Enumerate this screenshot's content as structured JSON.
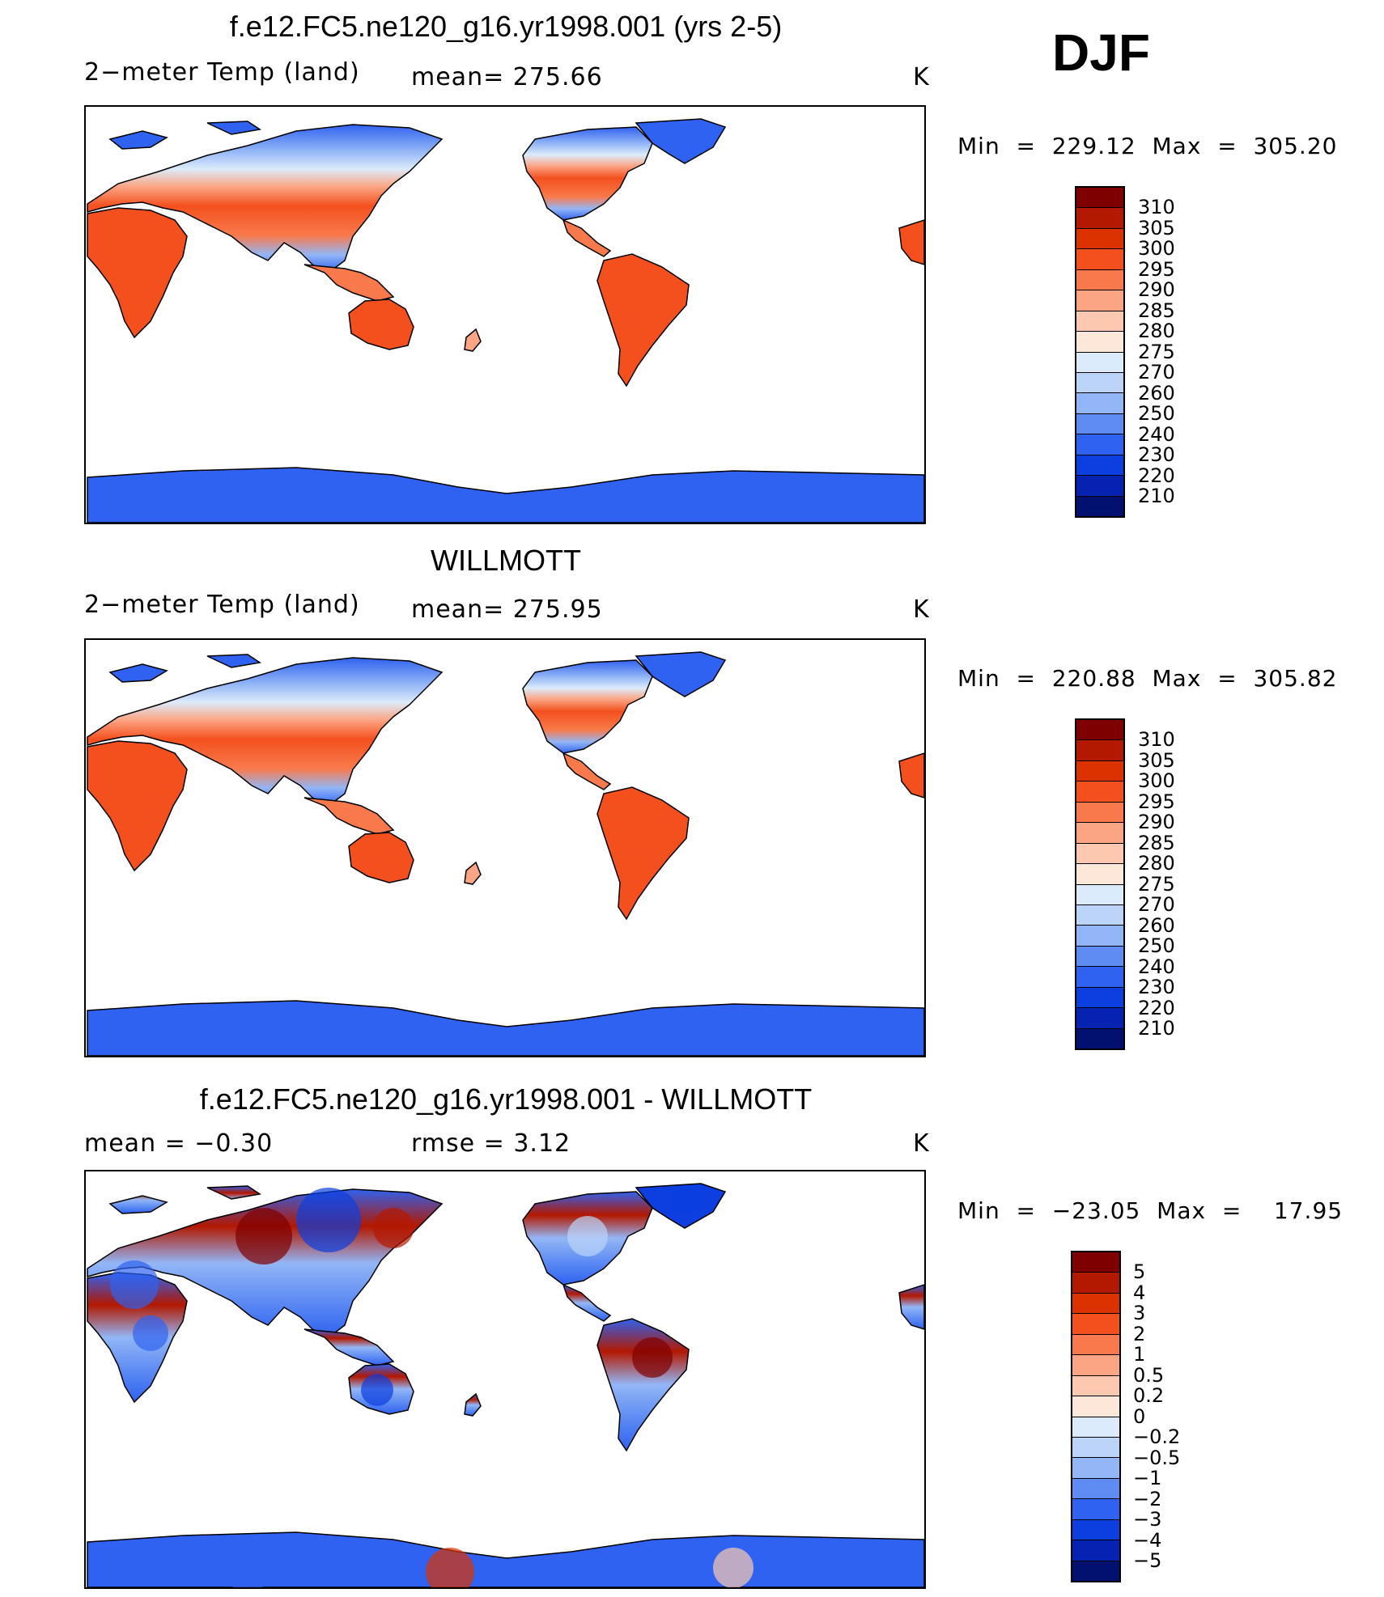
{
  "season": "DJF",
  "panels": [
    {
      "title": "f.e12.FC5.ne120_g16.yr1998.001 (yrs 2-5)",
      "left_label": "2−meter Temp (land)",
      "center_label": "mean= 275.66",
      "units": "K",
      "minmax": "Min  =  229.12  Max  =  305.20",
      "colorbar_labels": [
        "310",
        "305",
        "300",
        "295",
        "290",
        "285",
        "280",
        "275",
        "270",
        "260",
        "250",
        "240",
        "230",
        "220",
        "210"
      ]
    },
    {
      "title": "WILLMOTT",
      "left_label": "2−meter Temp (land)",
      "center_label": "mean= 275.95",
      "units": "K",
      "minmax": "Min  =  220.88  Max  =  305.82",
      "colorbar_labels": [
        "310",
        "305",
        "300",
        "295",
        "290",
        "285",
        "280",
        "275",
        "270",
        "260",
        "250",
        "240",
        "230",
        "220",
        "210"
      ]
    },
    {
      "title": "f.e12.FC5.ne120_g16.yr1998.001 - WILLMOTT",
      "left_label": "mean  =     −0.30",
      "center_label": "rmse  =      3.12",
      "units": "K",
      "minmax": "Min  =  −23.05  Max  =    17.95",
      "colorbar_labels": [
        "5",
        "4",
        "3",
        "2",
        "1",
        "0.5",
        "0.2",
        "0",
        "−0.2",
        "−0.5",
        "−1",
        "−2",
        "−3",
        "−4",
        "−5"
      ]
    }
  ],
  "colors": {
    "abs_scale": [
      "#7f0000",
      "#b31800",
      "#dc3200",
      "#f4501e",
      "#f87a4c",
      "#fba584",
      "#fcc9b0",
      "#fde7d8",
      "#dcebfb",
      "#bcd4f8",
      "#93b6f6",
      "#5e8cf3",
      "#2f62f0",
      "#0c3ee0",
      "#0522b0",
      "#021070"
    ],
    "diff_scale": [
      "#7f0000",
      "#b31800",
      "#dc3200",
      "#f4501e",
      "#f87a4c",
      "#fba584",
      "#fcc9b0",
      "#fde7d8",
      "#dcebfb",
      "#bcd4f8",
      "#93b6f6",
      "#5e8cf3",
      "#2f62f0",
      "#0c3ee0",
      "#0522b0",
      "#021070"
    ]
  }
}
